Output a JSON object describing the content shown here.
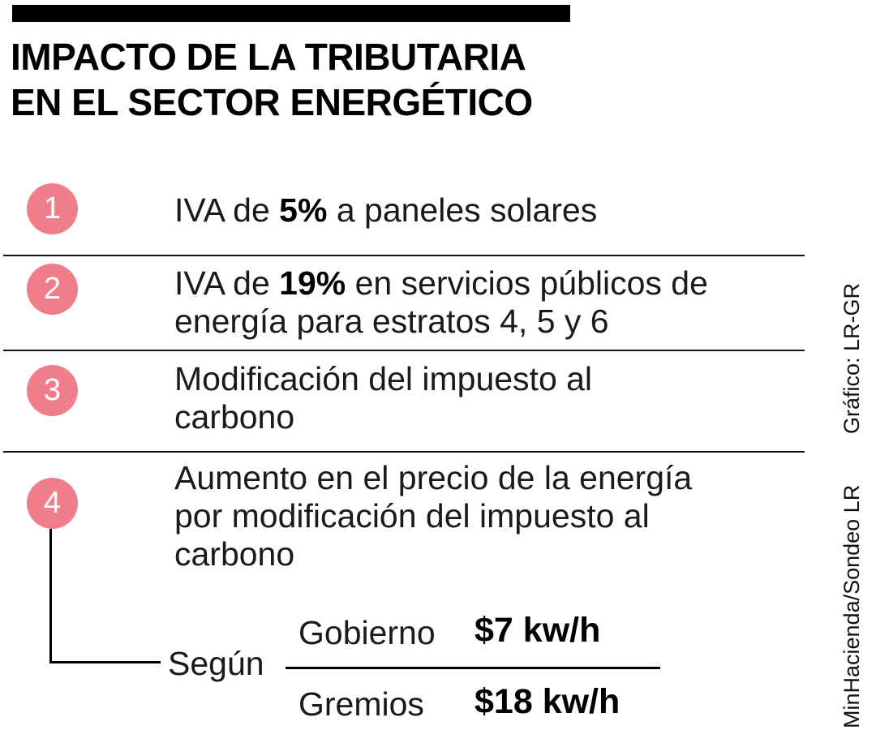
{
  "title": {
    "line1": "IMPACTO DE LA TRIBUTARIA",
    "line2": "EN EL SECTOR ENERGÉTICO"
  },
  "items": [
    {
      "number": "1",
      "lines": [
        [
          "IVA de ",
          "5%",
          " a paneles solares"
        ]
      ]
    },
    {
      "number": "2",
      "lines": [
        [
          "IVA de ",
          "19%",
          " en servicios públicos de"
        ],
        [
          "energía para estratos 4, 5 y 6"
        ]
      ]
    },
    {
      "number": "3",
      "lines": [
        [
          "Modificación del impuesto al"
        ],
        [
          "carbono"
        ]
      ]
    },
    {
      "number": "4",
      "lines": [
        [
          "Aumento en el precio de la energía"
        ],
        [
          "por modificación del impuesto al"
        ],
        [
          "carbono"
        ]
      ]
    }
  ],
  "breakdown": {
    "label": "Según",
    "rows": [
      {
        "name": "Gobierno",
        "value": "$7 kw/h"
      },
      {
        "name": "Gremios",
        "value": "$18 kw/h"
      }
    ]
  },
  "credits": {
    "source": "MinHacienda/Sondeo LR",
    "graphic": "Gráfico: LR-GR"
  },
  "colors": {
    "accent_pink": "#ef7d8a",
    "bar_black": "#000000"
  }
}
